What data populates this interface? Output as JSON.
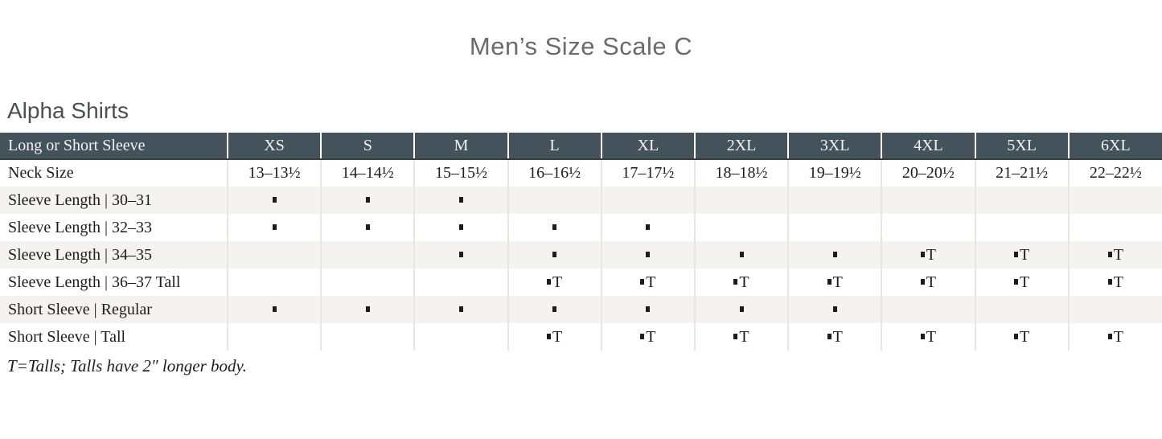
{
  "page_title": "Men’s Size Scale C",
  "section_title": "Alpha Shirts",
  "footnote": "T=Talls; Talls have 2″ longer body.",
  "colors": {
    "header_bg": "#44525c",
    "header_border": "#323d44",
    "header_text": "#f2f2ef",
    "stripe": "#f4f3f1",
    "grid_line": "#e8e5e2",
    "title_text": "#6a6b6e",
    "section_text": "#4c4e50",
    "body_text": "#1e1d1b"
  },
  "table": {
    "header_label": "Long or Short Sleeve",
    "sizes": [
      "XS",
      "S",
      "M",
      "L",
      "XL",
      "2XL",
      "3XL",
      "4XL",
      "5XL",
      "6XL"
    ],
    "legend": {
      "dot_symbol": "▪",
      "tall_symbol": "▪T",
      "tall_letter": "T"
    },
    "rows": [
      {
        "label": "Neck Size",
        "striped": false,
        "cells": [
          "13–13½",
          "14–14½",
          "15–15½",
          "16–16½",
          "17–17½",
          "18–18½",
          "19–19½",
          "20–20½",
          "21–21½",
          "22–22½"
        ]
      },
      {
        "label": "Sleeve Length | 30–31",
        "striped": true,
        "cells": [
          "dot",
          "dot",
          "dot",
          "",
          "",
          "",
          "",
          "",
          "",
          ""
        ]
      },
      {
        "label": "Sleeve Length | 32–33",
        "striped": false,
        "cells": [
          "dot",
          "dot",
          "dot",
          "dot",
          "dot",
          "",
          "",
          "",
          "",
          ""
        ]
      },
      {
        "label": "Sleeve Length | 34–35",
        "striped": true,
        "cells": [
          "",
          "",
          "dot",
          "dot",
          "dot",
          "dot",
          "dot",
          "dotT",
          "dotT",
          "dotT"
        ]
      },
      {
        "label": "Sleeve Length | 36–37 Tall",
        "striped": false,
        "cells": [
          "",
          "",
          "",
          "dotT",
          "dotT",
          "dotT",
          "dotT",
          "dotT",
          "dotT",
          "dotT"
        ]
      },
      {
        "label": "Short Sleeve | Regular",
        "striped": true,
        "cells": [
          "dot",
          "dot",
          "dot",
          "dot",
          "dot",
          "dot",
          "dot",
          "",
          "",
          ""
        ]
      },
      {
        "label": "Short Sleeve | Tall",
        "striped": false,
        "cells": [
          "",
          "",
          "",
          "dotT",
          "dotT",
          "dotT",
          "dotT",
          "dotT",
          "dotT",
          "dotT"
        ]
      }
    ]
  }
}
